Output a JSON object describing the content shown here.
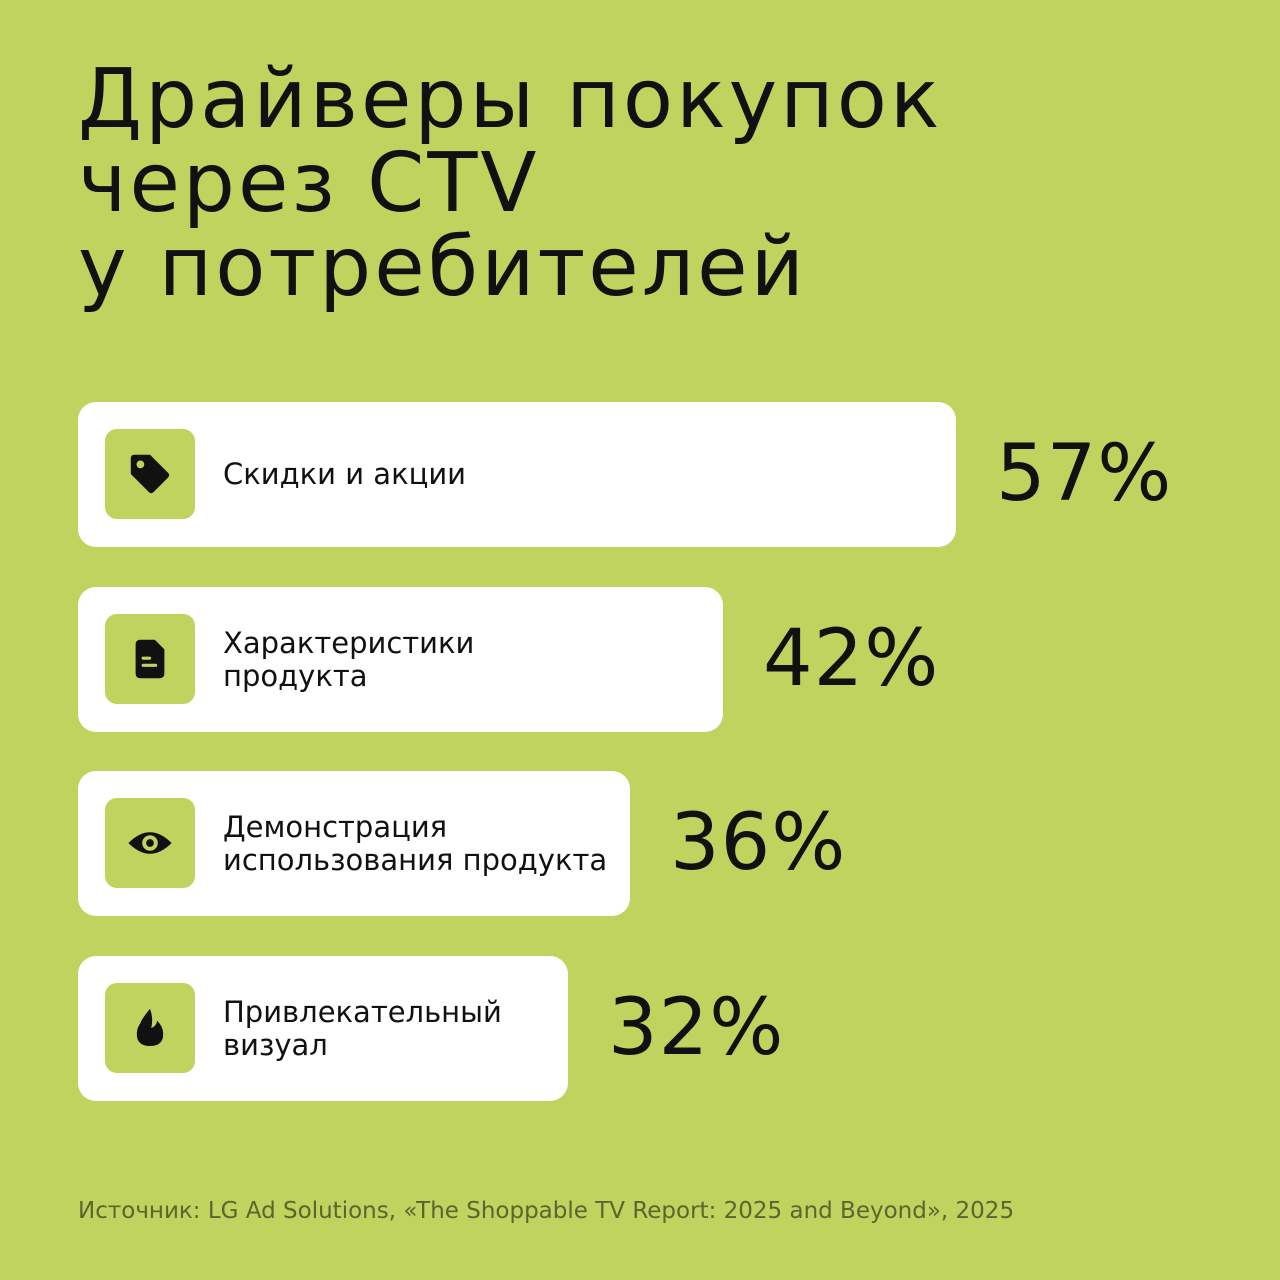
{
  "title": {
    "lines": [
      "Драйверы покупок",
      "через CTV",
      "у потребителей"
    ]
  },
  "chart_data": {
    "type": "bar",
    "orientation": "horizontal",
    "title": "Драйверы покупок через CTV у потребителей",
    "categories": [
      "Скидки и акции",
      "Характеристики\nпродукта",
      "Демонстрация\nиспользования продукта",
      "Привлекательный\nвизуал"
    ],
    "values": [
      57,
      42,
      36,
      32
    ],
    "value_labels": [
      "57%",
      "42%",
      "36%",
      "32%"
    ],
    "icons": [
      "tag-icon",
      "document-icon",
      "eye-icon",
      "flame-icon"
    ],
    "unit": "%",
    "grid": false,
    "legend": "none"
  },
  "source": "Источник: LG Ad Solutions, «The Shoppable TV Report: 2025 and Beyond», 2025",
  "colors": {
    "background": "#bfd35e",
    "bar": "#ffffff",
    "icon_box": "#bfd35e",
    "text": "#111111",
    "source_text": "#596630"
  }
}
